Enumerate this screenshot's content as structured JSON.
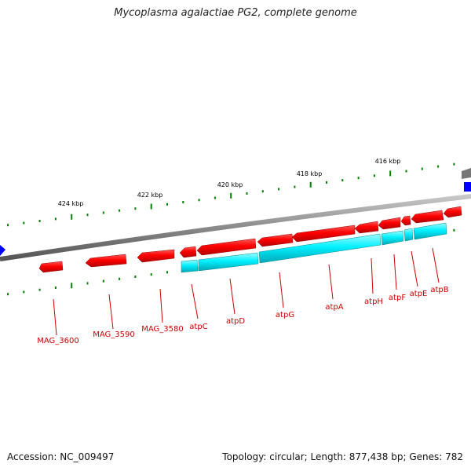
{
  "title": "Mycoplasma agalactiae PG2, complete genome",
  "accession": "Accession: NC_009497",
  "summary": "Topology: circular; Length: 877,438 bp; Genes: 782",
  "scale_labels": [
    "424 kbp",
    "422 kbp",
    "420 kbp",
    "418 kbp",
    "416 kbp"
  ],
  "gene_labels": [
    "MAG_3600",
    "MAG_3590",
    "MAG_3580",
    "atpC",
    "atpD",
    "atpG",
    "atpA",
    "atpH",
    "atpF",
    "atpE",
    "atpB"
  ],
  "colors": {
    "cds": "#ff0000",
    "cds_shade": "#c00000",
    "rna": "#00ffff",
    "rna_shade": "#00a8b0",
    "backbone": "#888888",
    "ticks": "#008000",
    "label": "#cc0000",
    "edge_feature": "#0000ff"
  }
}
